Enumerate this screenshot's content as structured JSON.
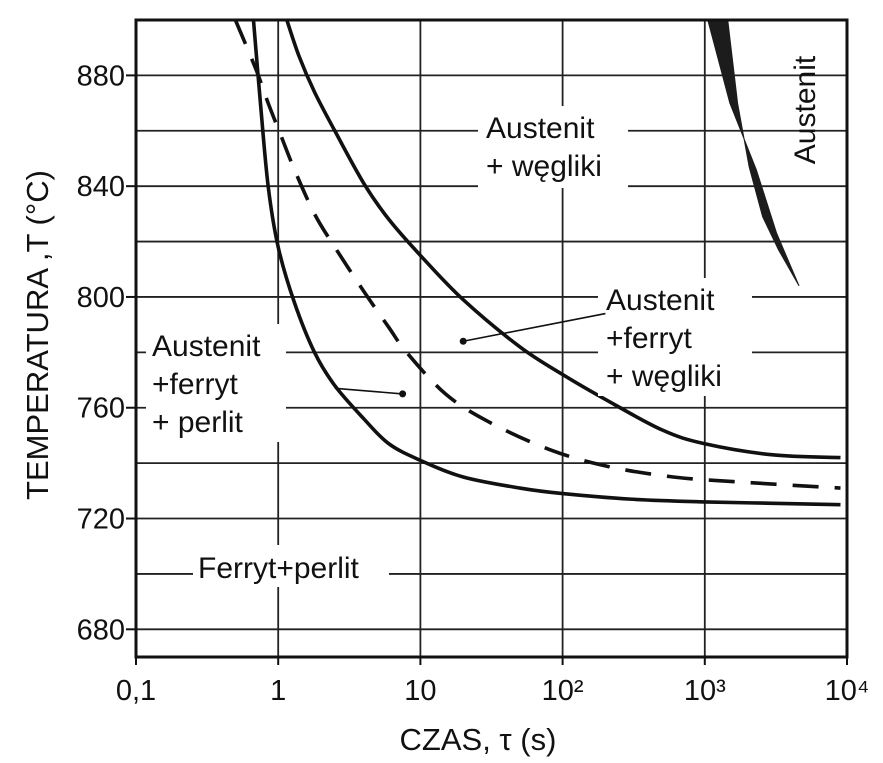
{
  "chart_data": {
    "type": "line",
    "x_scale": "log",
    "xlim": [
      0.1,
      10000
    ],
    "ylim": [
      670,
      900
    ],
    "x_ticks": [
      0.1,
      1,
      10,
      100,
      1000,
      10000
    ],
    "x_tick_labels": [
      "0,1",
      "1",
      "10",
      "10²",
      "10³",
      "10⁴"
    ],
    "y_ticks": [
      680,
      720,
      760,
      800,
      840,
      880
    ],
    "y_tick_labels": [
      "680",
      "720",
      "760",
      "800",
      "840",
      "880"
    ],
    "y_minor_gridlines": [
      700,
      740,
      780,
      820,
      860
    ],
    "grid": true,
    "xlabel": "CZAS, τ (s)",
    "ylabel": "TEMPERATURA ,T (°C)",
    "series": [
      {
        "style": "solid",
        "x": [
          0.67,
          0.75,
          0.85,
          1.0,
          1.3,
          1.8,
          2.5,
          4,
          6,
          10,
          20,
          50,
          100,
          300,
          1000,
          3000,
          9000
        ],
        "y": [
          900,
          870,
          840,
          818,
          798,
          780,
          768,
          756,
          747,
          741,
          735,
          731,
          729,
          727,
          726,
          725.5,
          725
        ]
      },
      {
        "style": "dashed",
        "x": [
          0.5,
          0.7,
          0.85,
          1.05,
          1.3,
          1.8,
          2.5,
          4,
          6,
          8,
          15,
          30,
          80,
          200,
          600,
          2000,
          9000
        ],
        "y": [
          900,
          882,
          870,
          858,
          846,
          830,
          818,
          802,
          789,
          780,
          765,
          755,
          745,
          739,
          735,
          733,
          731
        ]
      },
      {
        "style": "solid",
        "x": [
          1.15,
          1.4,
          1.8,
          2.5,
          4,
          6,
          10,
          20,
          50,
          100,
          200,
          500,
          1000,
          3000,
          9000
        ],
        "y": [
          900,
          887,
          874,
          860,
          841,
          828,
          815,
          799,
          782,
          772,
          763,
          752,
          747,
          743,
          742
        ]
      }
    ],
    "austenite_band": {
      "upper": {
        "x": [
          1050,
          1500,
          2300,
          3200,
          4600
        ],
        "y": [
          900,
          870,
          846,
          823,
          804
        ]
      },
      "lower": {
        "x": [
          1450,
          1700,
          2050,
          2550,
          3300,
          4600
        ],
        "y": [
          900,
          870,
          847,
          829,
          817,
          804
        ]
      }
    },
    "region_labels": {
      "austenit_top": "Austenit",
      "austenit_weglik_1": "Austenit",
      "austenit_weglik_2": "+ węgliki",
      "austenit_ferryt_weglik_1": "Austenit",
      "austenit_ferryt_weglik_2": "+ferryt",
      "austenit_ferryt_weglik_3": "+ węgliki",
      "austenit_ferryt_perlit_1": "Austenit",
      "austenit_ferryt_perlit_2": "+ferryt",
      "austenit_ferryt_perlit_3": "+ perlit",
      "ferryt_perlit": "Ferryt+perlit"
    },
    "leaders": [
      {
        "from": [
          20,
          784
        ],
        "to": [
          200,
          794
        ]
      },
      {
        "from": [
          7.5,
          765
        ],
        "to": [
          2.5,
          767
        ]
      }
    ]
  }
}
